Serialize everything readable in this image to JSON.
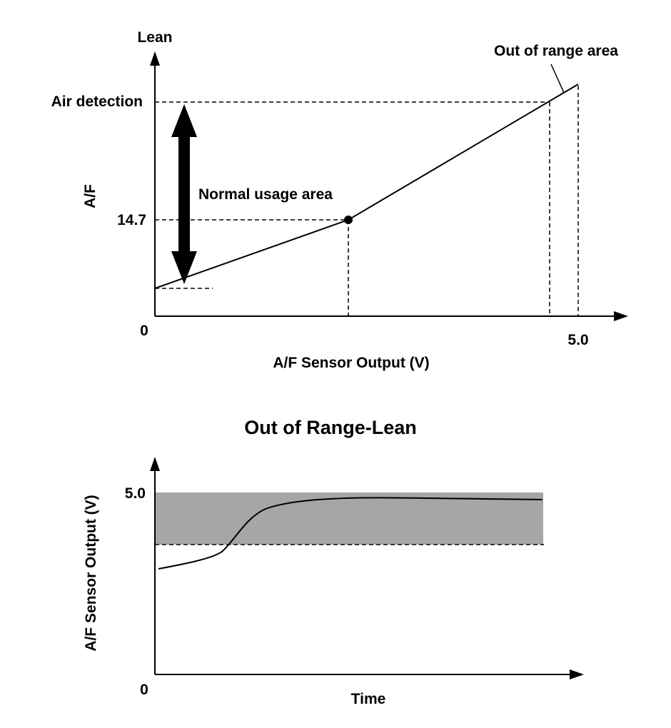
{
  "chart_data": [
    {
      "type": "line",
      "axis": {
        "y_top_label": "Lean",
        "y_label": "A/F",
        "x_label": "A/F Sensor Output (V)",
        "origin_label": "0",
        "x_end_label": "5.0",
        "y_label_air": "Air detection",
        "y_label_stoich": "14.7"
      },
      "annotations": {
        "out_of_range": "Out of range area",
        "normal_usage": "Normal usage area"
      },
      "x_max": 5.0,
      "stoich_value": 14.7
    },
    {
      "type": "line",
      "title": "Out of Range-Lean",
      "axis": {
        "y_label": "A/F Sensor Output (V)",
        "x_label": "Time",
        "origin_label": "0",
        "y_top_label": "5.0"
      },
      "shaded_band": {
        "color": "#a6a6a6"
      }
    }
  ],
  "colors": {
    "ink": "#000000",
    "band": "#a6a6a6"
  }
}
